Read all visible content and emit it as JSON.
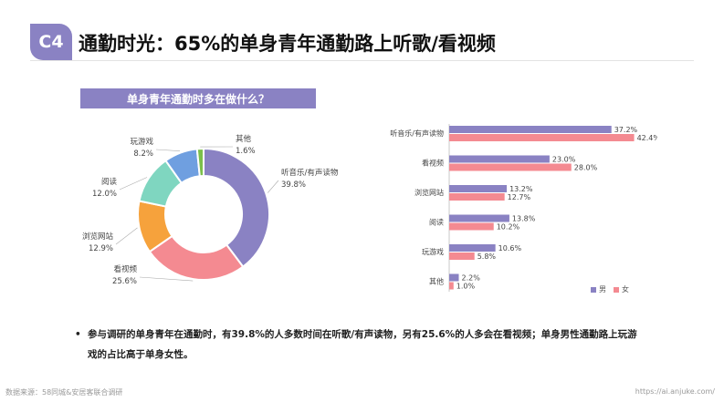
{
  "header": {
    "badge": "C4",
    "title": "通勤时光：65%的单身青年通勤路上听歌/看视频"
  },
  "subtitle": "单身青年通勤时多在做什么？",
  "chart_data": [
    {
      "type": "pie",
      "style": "donut",
      "categories": [
        "听音乐/有声读物",
        "看视频",
        "浏览网站",
        "阅读",
        "玩游戏",
        "其他"
      ],
      "values": [
        39.8,
        25.6,
        12.9,
        12.0,
        8.2,
        1.6
      ],
      "value_labels": [
        "39.8%",
        "25.6%",
        "12.9%",
        "12.0%",
        "8.2%",
        "1.6%"
      ],
      "colors": [
        "#8a82c3",
        "#f48a91",
        "#f6a23c",
        "#7fd6c0",
        "#6f9fe0",
        "#7bbf4a"
      ]
    },
    {
      "type": "bar",
      "orientation": "horizontal",
      "categories": [
        "听音乐/有声读物",
        "看视频",
        "浏览网站",
        "阅读",
        "玩游戏",
        "其他"
      ],
      "series": [
        {
          "name": "男",
          "values": [
            37.2,
            23.0,
            13.2,
            13.8,
            10.6,
            2.2
          ],
          "labels": [
            "37.2%",
            "23.0%",
            "13.2%",
            "13.8%",
            "10.6%",
            "2.2%"
          ],
          "color": "#8a82c3"
        },
        {
          "name": "女",
          "values": [
            42.4,
            28.0,
            12.7,
            10.2,
            5.8,
            1.0
          ],
          "labels": [
            "42.4%",
            "28.0%",
            "12.7%",
            "10.2%",
            "5.8%",
            "1.0%"
          ],
          "color": "#f48a91"
        }
      ],
      "xlim": [
        0,
        45
      ],
      "legend": "bottom-right"
    }
  ],
  "note": "参与调研的单身青年在通勤时，有39.8%的人多数时间在听歌/有声读物，另有25.6%的人多会在看视频；单身男性通勤路上玩游戏的占比高于单身女性。",
  "footer": {
    "source": "数据来源：58同城&安居客联合调研",
    "site": "https://ai.anjuke.com/"
  }
}
